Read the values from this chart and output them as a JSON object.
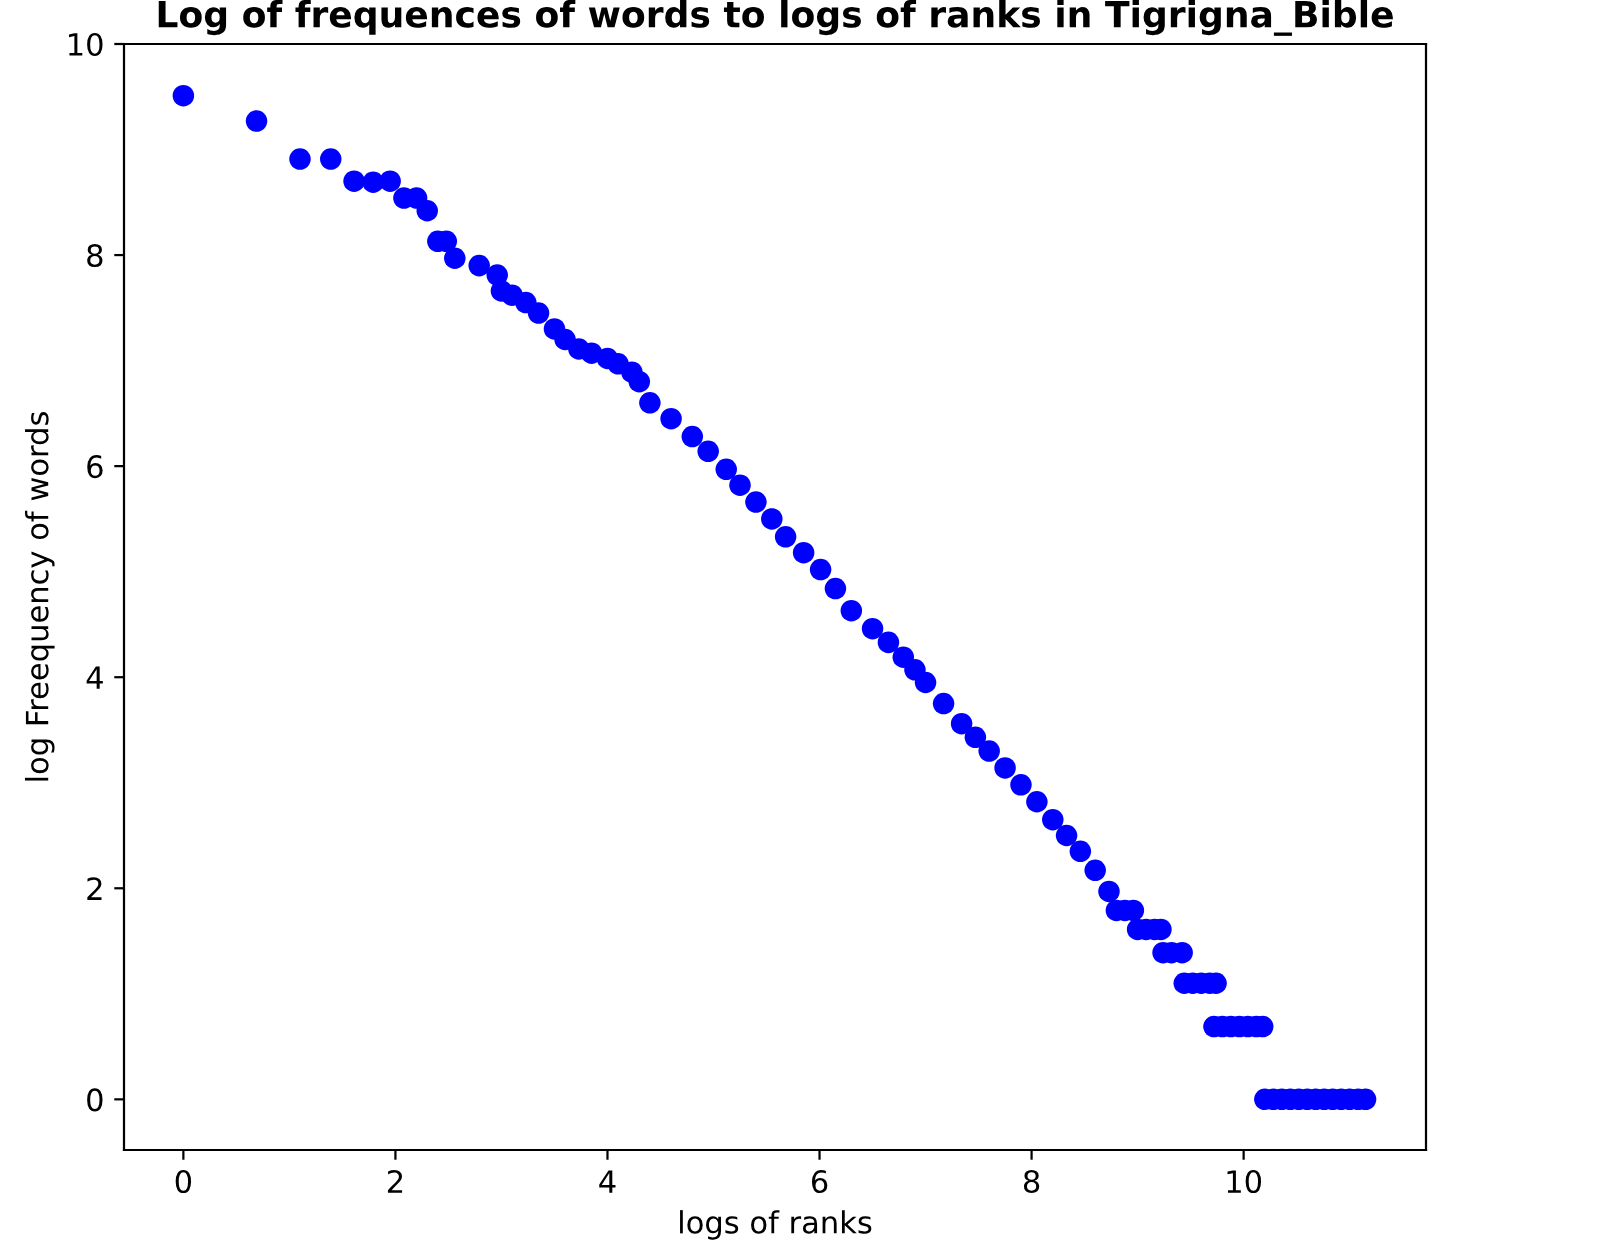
{
  "chart_data": {
    "type": "scatter",
    "title": "Log of frequences of words to logs of ranks in Tigrigna_Bible",
    "xlabel": "logs of ranks",
    "ylabel": "log Freequency of words",
    "series": [
      {
        "color": "#0000ff",
        "x": [
          0,
          0.69,
          1.1,
          1.39,
          1.61,
          1.79,
          1.95,
          2.08,
          2.2,
          2.3,
          2.4,
          2.48,
          2.56,
          2.79,
          2.96,
          3.0,
          3.1,
          3.23,
          3.35,
          3.5,
          3.6,
          3.73,
          3.85,
          4.0,
          4.1,
          4.23,
          4.3,
          4.4,
          4.6,
          4.8,
          4.95,
          5.12,
          5.25,
          5.4,
          5.55,
          5.68,
          5.85,
          6.01,
          6.15,
          6.3,
          6.5,
          6.65,
          6.79,
          6.9,
          7.0,
          7.17,
          7.34,
          7.47,
          7.6,
          7.75,
          7.9,
          8.05,
          8.2,
          8.33,
          8.46,
          8.6,
          8.73,
          8.8,
          8.88,
          8.96,
          9.0,
          9.08,
          9.16,
          9.22,
          9.24,
          9.32,
          9.42,
          9.44,
          9.52,
          9.6,
          9.68,
          9.74,
          9.72,
          9.8,
          9.88,
          9.96,
          10.04,
          10.12,
          10.18,
          10.2,
          10.28,
          10.36,
          10.44,
          10.52,
          10.6,
          10.68,
          10.76,
          10.84,
          10.92,
          11.0,
          11.08,
          11.15
        ],
        "values": [
          9.51,
          9.27,
          8.91,
          8.91,
          8.7,
          8.69,
          8.7,
          8.54,
          8.54,
          8.42,
          8.13,
          8.13,
          7.97,
          7.9,
          7.81,
          7.66,
          7.62,
          7.55,
          7.45,
          7.3,
          7.2,
          7.11,
          7.07,
          7.02,
          6.97,
          6.89,
          6.8,
          6.6,
          6.45,
          6.28,
          6.14,
          5.97,
          5.82,
          5.66,
          5.5,
          5.33,
          5.18,
          5.02,
          4.84,
          4.63,
          4.46,
          4.33,
          4.19,
          4.07,
          3.95,
          3.75,
          3.56,
          3.43,
          3.3,
          3.14,
          2.98,
          2.82,
          2.65,
          2.5,
          2.35,
          2.17,
          1.97,
          1.79,
          1.79,
          1.79,
          1.61,
          1.61,
          1.61,
          1.61,
          1.39,
          1.39,
          1.39,
          1.1,
          1.1,
          1.1,
          1.1,
          1.1,
          0.69,
          0.69,
          0.69,
          0.69,
          0.69,
          0.69,
          0.69,
          0,
          0,
          0,
          0,
          0,
          0,
          0,
          0,
          0,
          0,
          0,
          0,
          0
        ]
      }
    ],
    "xlim": [
      -0.56,
      11.72
    ],
    "ylim": [
      -0.48,
      10.0
    ],
    "xticks": [
      0,
      2,
      4,
      6,
      8,
      10
    ],
    "yticks": [
      0,
      2,
      4,
      6,
      8,
      10
    ],
    "marker": "circle",
    "grid": false,
    "legend": false
  }
}
